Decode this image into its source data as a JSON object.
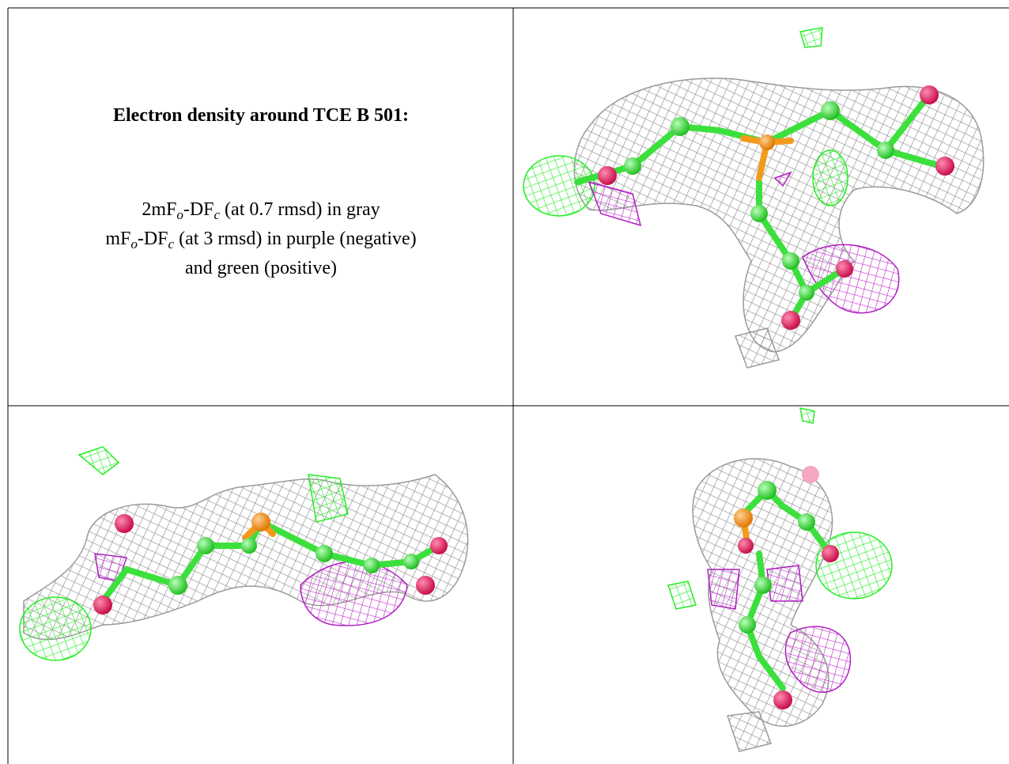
{
  "title": "Electron density around TCE B 501:",
  "legend": [
    {
      "parts": [
        {
          "text": "2mF"
        },
        {
          "sub": "o"
        },
        {
          "text": "-DF"
        },
        {
          "sub": "c"
        },
        {
          "text": " (at 0.7 rmsd) in gray"
        }
      ]
    },
    {
      "parts": [
        {
          "text": "mF"
        },
        {
          "sub": "o"
        },
        {
          "text": "-DF"
        },
        {
          "sub": "c"
        },
        {
          "text": " (at 3 rmsd) in purple (negative)"
        }
      ]
    },
    {
      "parts": [
        {
          "text": "and green (positive)"
        }
      ]
    }
  ]
}
